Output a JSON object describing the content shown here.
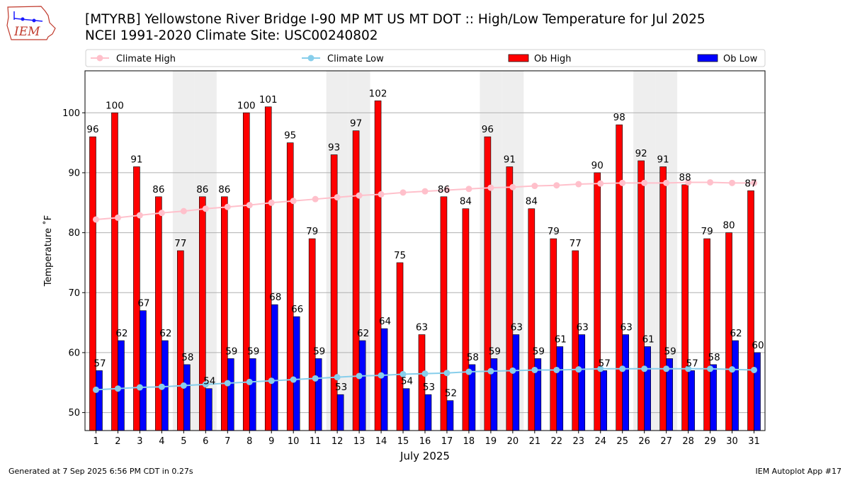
{
  "logo_text": "IEM",
  "title_line1": "[MTYRB] Yellowstone River Bridge I-90 MP MT US MT DOT :: High/Low Temperature for Jul 2025",
  "title_line2": "NCEI 1991-2020 Climate Site: USC00240802",
  "footer_left": "Generated at 7 Sep 2025 6:56 PM CDT in 0.27s",
  "footer_right": "IEM Autoplot App #17",
  "colors": {
    "ob_high": "#ff0000",
    "ob_low": "#0000ff",
    "climate_high": "#ffc0cb",
    "climate_low": "#87ceeb",
    "weekend_shade": "#eeeeee",
    "grid": "#b0b0b0"
  },
  "chart_data": {
    "type": "bar",
    "xlabel": "July 2025",
    "ylabel": "Temperature ˚F",
    "ylim": [
      47,
      107
    ],
    "yticks": [
      50,
      60,
      70,
      80,
      90,
      100
    ],
    "grid": "horizontal",
    "legend_placement": "top",
    "shaded_days": [
      5,
      6,
      12,
      13,
      19,
      20,
      26,
      27
    ],
    "categories": [
      "1",
      "2",
      "3",
      "4",
      "5",
      "6",
      "7",
      "8",
      "9",
      "10",
      "11",
      "12",
      "13",
      "14",
      "15",
      "16",
      "17",
      "18",
      "19",
      "20",
      "21",
      "22",
      "23",
      "24",
      "25",
      "26",
      "27",
      "28",
      "29",
      "30",
      "31"
    ],
    "series": [
      {
        "name": "Climate High",
        "kind": "line",
        "values": [
          82.2,
          82.5,
          82.9,
          83.3,
          83.6,
          84.0,
          84.3,
          84.6,
          85.0,
          85.3,
          85.6,
          85.9,
          86.2,
          86.4,
          86.7,
          86.9,
          87.1,
          87.3,
          87.5,
          87.6,
          87.8,
          87.9,
          88.1,
          88.2,
          88.3,
          88.3,
          88.3,
          88.4,
          88.4,
          88.3,
          88.3
        ]
      },
      {
        "name": "Climate Low",
        "kind": "line",
        "values": [
          53.8,
          54.0,
          54.2,
          54.3,
          54.5,
          54.7,
          54.9,
          55.1,
          55.3,
          55.5,
          55.7,
          55.9,
          56.1,
          56.2,
          56.4,
          56.5,
          56.6,
          56.8,
          56.9,
          57.0,
          57.1,
          57.1,
          57.2,
          57.3,
          57.3,
          57.3,
          57.3,
          57.3,
          57.3,
          57.2,
          57.1
        ]
      },
      {
        "name": "Ob High",
        "kind": "bar",
        "values": [
          96,
          100,
          91,
          86,
          77,
          86,
          86,
          100,
          101,
          95,
          79,
          93,
          97,
          102,
          75,
          63,
          86,
          84,
          96,
          91,
          84,
          79,
          77,
          90,
          98,
          92,
          91,
          88,
          79,
          80,
          87
        ]
      },
      {
        "name": "Ob Low",
        "kind": "bar",
        "values": [
          57,
          62,
          67,
          62,
          58,
          54,
          59,
          59,
          68,
          66,
          59,
          53,
          62,
          64,
          54,
          53,
          52,
          58,
          59,
          63,
          59,
          61,
          63,
          57,
          63,
          61,
          59,
          57,
          58,
          62,
          60
        ]
      }
    ]
  }
}
